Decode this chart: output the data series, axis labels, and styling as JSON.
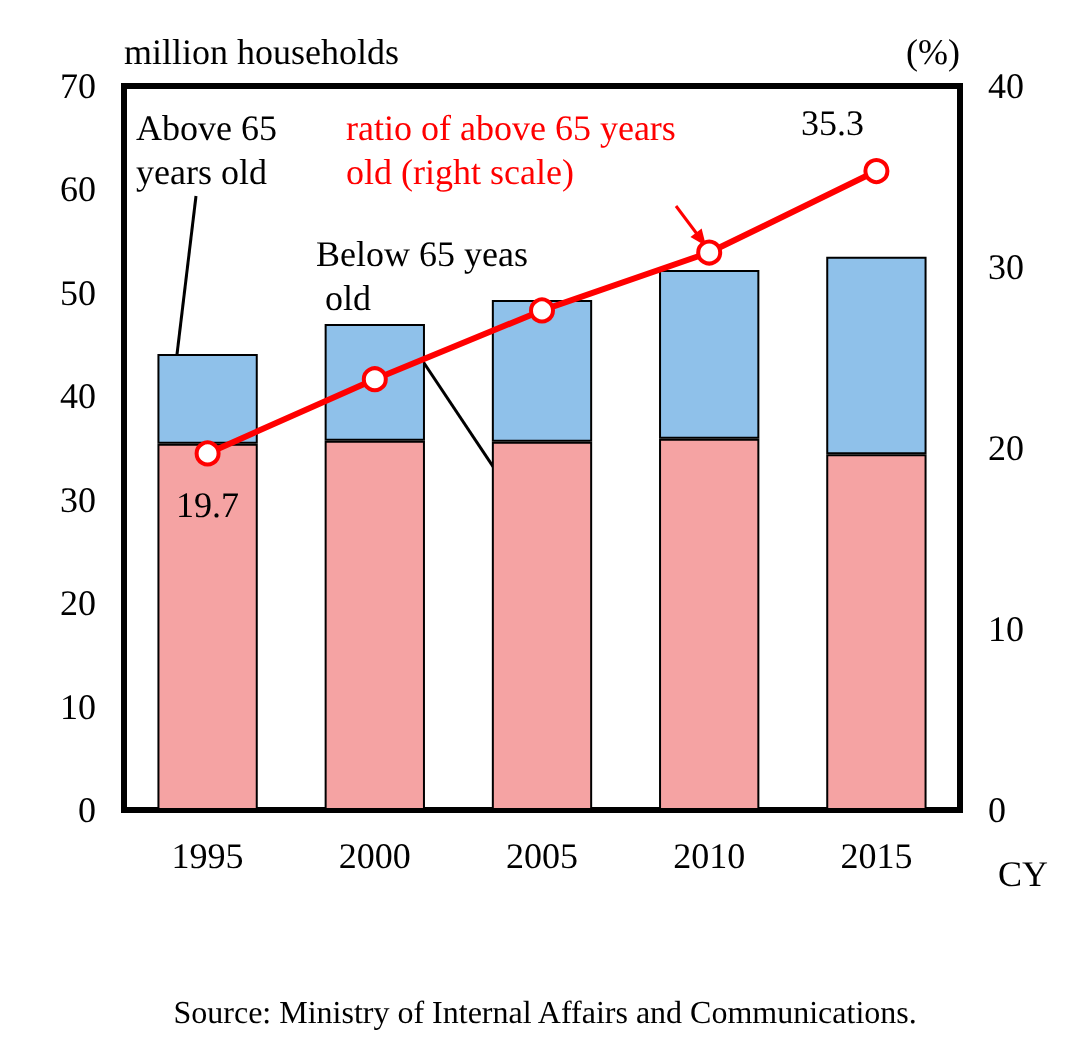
{
  "chart_data": {
    "type": "bar",
    "categories": [
      "1995",
      "2000",
      "2005",
      "2010",
      "2015"
    ],
    "stacked": true,
    "series": [
      {
        "color": "#f5a3a3",
        "values": [
          35.4,
          35.7,
          35.6,
          35.9,
          34.4
        ]
      },
      {
        "color": "#8fc1ea",
        "values": [
          8.7,
          11.3,
          13.7,
          16.3,
          19.1
        ]
      },
      {
        "type": "line",
        "axis": "y2",
        "color": "#ff0000",
        "values": [
          19.7,
          23.8,
          27.6,
          30.8,
          35.3
        ],
        "value_labels": [
          "19.7",
          null,
          null,
          null,
          "35.3"
        ]
      }
    ],
    "ylabel": "million households",
    "y2label": "(%)",
    "xlabel": "CY",
    "ylim": [
      0,
      70
    ],
    "yticks": [
      0,
      10,
      20,
      30,
      40,
      50,
      60,
      70
    ],
    "y2lim": [
      0,
      40
    ],
    "y2ticks": [
      0,
      10,
      20,
      30,
      40
    ],
    "marker": "circle",
    "grid": false,
    "annotations": [
      "Above 65 years old",
      "Below 65 yeas old",
      "ratio of above 65 years old (right scale)",
      "Source: Ministry of Internal Affairs and Communications."
    ]
  }
}
